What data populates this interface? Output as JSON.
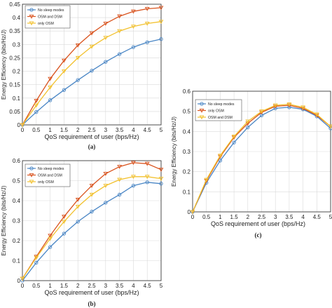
{
  "colors": {
    "no_sleep_modes": "#4a86c5",
    "osm_and_dsm": "#d9531e",
    "only_osm": "#f2c12e",
    "grid": "#d9d9d9",
    "axis": "#262626"
  },
  "chart_data": [
    {
      "type": "line",
      "caption": "(a)",
      "title": "",
      "xlabel": "QoS requirement of user (bps/Hz)",
      "ylabel": "Energy Efficiency (bits/Hz/J)",
      "xlim": [
        0,
        5
      ],
      "ylim": [
        0,
        0.45
      ],
      "xticks": [
        "0",
        "0.5",
        "1",
        "1.5",
        "2",
        "2.5",
        "3",
        "3.5",
        "4",
        "4.5",
        "5"
      ],
      "yticks": [
        "0",
        "0.05",
        "0.1",
        "0.15",
        "0.2",
        "0.25",
        "0.3",
        "0.35",
        "0.4",
        "0.45"
      ],
      "grid": true,
      "legend_position": "top-left",
      "x": [
        0,
        0.5,
        1,
        1.5,
        2,
        2.5,
        3,
        3.5,
        4,
        4.5,
        5
      ],
      "series": [
        {
          "name": "No sleep modes",
          "color_key": "no_sleep_modes",
          "marker": "circle",
          "values": [
            0,
            0.048,
            0.092,
            0.13,
            0.167,
            0.202,
            0.235,
            0.264,
            0.29,
            0.308,
            0.32
          ]
        },
        {
          "name": "OSM and DSM",
          "color_key": "osm_and_dsm",
          "marker": "triangle-down",
          "values": [
            0,
            0.09,
            0.172,
            0.24,
            0.297,
            0.342,
            0.378,
            0.405,
            0.423,
            0.433,
            0.437
          ]
        },
        {
          "name": "only OSM",
          "color_key": "only_osm",
          "marker": "triangle-down",
          "values": [
            0,
            0.073,
            0.14,
            0.2,
            0.25,
            0.292,
            0.325,
            0.35,
            0.367,
            0.378,
            0.385
          ]
        }
      ]
    },
    {
      "type": "line",
      "caption": "(b)",
      "title": "",
      "xlabel": "QoS requirement of user (bps/Hz)",
      "ylabel": "Energy Efficiency (bits/Hz/J)",
      "xlim": [
        0,
        5
      ],
      "ylim": [
        0,
        0.6
      ],
      "xticks": [
        "0",
        "0.5",
        "1",
        "1.5",
        "2",
        "2.5",
        "3",
        "3.5",
        "4",
        "4.5",
        "5"
      ],
      "yticks": [
        "0",
        "0.1",
        "0.2",
        "0.3",
        "0.4",
        "0.5",
        "0.6"
      ],
      "grid": true,
      "legend_position": "top-left",
      "x": [
        0,
        0.5,
        1,
        1.5,
        2,
        2.5,
        3,
        3.5,
        4,
        4.5,
        5
      ],
      "series": [
        {
          "name": "No sleep modes",
          "color_key": "no_sleep_modes",
          "marker": "circle",
          "values": [
            0,
            0.09,
            0.168,
            0.235,
            0.295,
            0.345,
            0.39,
            0.43,
            0.475,
            0.492,
            0.485
          ]
        },
        {
          "name": "OSM and DSM",
          "color_key": "osm_and_dsm",
          "marker": "triangle-down",
          "values": [
            0.01,
            0.12,
            0.225,
            0.32,
            0.405,
            0.475,
            0.535,
            0.57,
            0.59,
            0.585,
            0.555
          ]
        },
        {
          "name": "only OSM",
          "color_key": "only_osm",
          "marker": "triangle-down",
          "values": [
            0.01,
            0.115,
            0.21,
            0.295,
            0.37,
            0.43,
            0.475,
            0.505,
            0.52,
            0.52,
            0.51
          ]
        }
      ]
    },
    {
      "type": "line",
      "caption": "(c)",
      "title": "",
      "xlabel": "QoS requirement of user (bps/Hz)",
      "ylabel": "Energy Efficiency (bits/Hz/J)",
      "xlim": [
        0,
        5
      ],
      "ylim": [
        0,
        0.6
      ],
      "xticks": [
        "0",
        "0.5",
        "1",
        "1.5",
        "2",
        "2.5",
        "3",
        "3.5",
        "4",
        "4.5",
        "5"
      ],
      "yticks": [
        "0",
        "0.1",
        "0.2",
        "0.3",
        "0.4",
        "0.5",
        "0.6"
      ],
      "grid": true,
      "legend_position": "top-left",
      "x": [
        0,
        0.5,
        1,
        1.5,
        2,
        2.5,
        3,
        3.5,
        4,
        4.5,
        5
      ],
      "series": [
        {
          "name": "No sleep modes",
          "color_key": "no_sleep_modes",
          "marker": "circle",
          "values": [
            0,
            0.145,
            0.255,
            0.345,
            0.42,
            0.48,
            0.515,
            0.52,
            0.51,
            0.475,
            0.415
          ]
        },
        {
          "name": "only OSM",
          "color_key": "osm_and_dsm",
          "marker": "triangle-down",
          "values": [
            0,
            0.155,
            0.275,
            0.37,
            0.44,
            0.495,
            0.525,
            0.53,
            0.515,
            0.48,
            0.425
          ]
        },
        {
          "name": "OSM and DSM",
          "color_key": "only_osm",
          "marker": "triangle-down",
          "values": [
            0,
            0.16,
            0.28,
            0.375,
            0.45,
            0.5,
            0.53,
            0.535,
            0.52,
            0.485,
            0.425
          ]
        }
      ]
    }
  ]
}
